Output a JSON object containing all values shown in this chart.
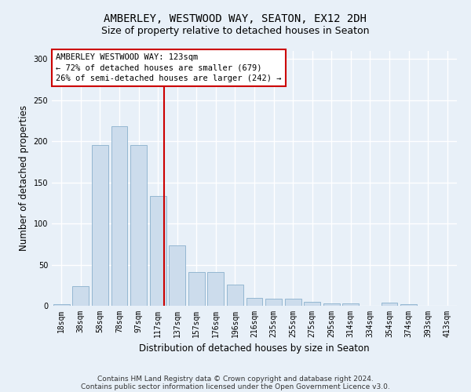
{
  "title": "AMBERLEY, WESTWOOD WAY, SEATON, EX12 2DH",
  "subtitle": "Size of property relative to detached houses in Seaton",
  "xlabel": "Distribution of detached houses by size in Seaton",
  "ylabel": "Number of detached properties",
  "bar_color": "#ccdcec",
  "bar_edge_color": "#8ab0cc",
  "categories": [
    "18sqm",
    "38sqm",
    "58sqm",
    "78sqm",
    "97sqm",
    "117sqm",
    "137sqm",
    "157sqm",
    "176sqm",
    "196sqm",
    "216sqm",
    "235sqm",
    "255sqm",
    "275sqm",
    "295sqm",
    "314sqm",
    "334sqm",
    "354sqm",
    "374sqm",
    "393sqm",
    "413sqm"
  ],
  "values": [
    2,
    24,
    196,
    218,
    196,
    134,
    73,
    41,
    41,
    26,
    10,
    9,
    9,
    5,
    3,
    3,
    0,
    4,
    2,
    0,
    0
  ],
  "vline_pos": 5.3,
  "vline_color": "#cc0000",
  "annotation_text": "AMBERLEY WESTWOOD WAY: 123sqm\n← 72% of detached houses are smaller (679)\n26% of semi-detached houses are larger (242) →",
  "annotation_box_color": "#ffffff",
  "annotation_box_edge_color": "#cc0000",
  "ylim": [
    0,
    310
  ],
  "yticks": [
    0,
    50,
    100,
    150,
    200,
    250,
    300
  ],
  "footer_line1": "Contains HM Land Registry data © Crown copyright and database right 2024.",
  "footer_line2": "Contains public sector information licensed under the Open Government Licence v3.0.",
  "background_color": "#e8f0f8",
  "grid_color": "#ffffff",
  "title_fontsize": 10,
  "subtitle_fontsize": 9,
  "axis_label_fontsize": 8.5,
  "tick_fontsize": 7,
  "annotation_fontsize": 7.5,
  "footer_fontsize": 6.5
}
